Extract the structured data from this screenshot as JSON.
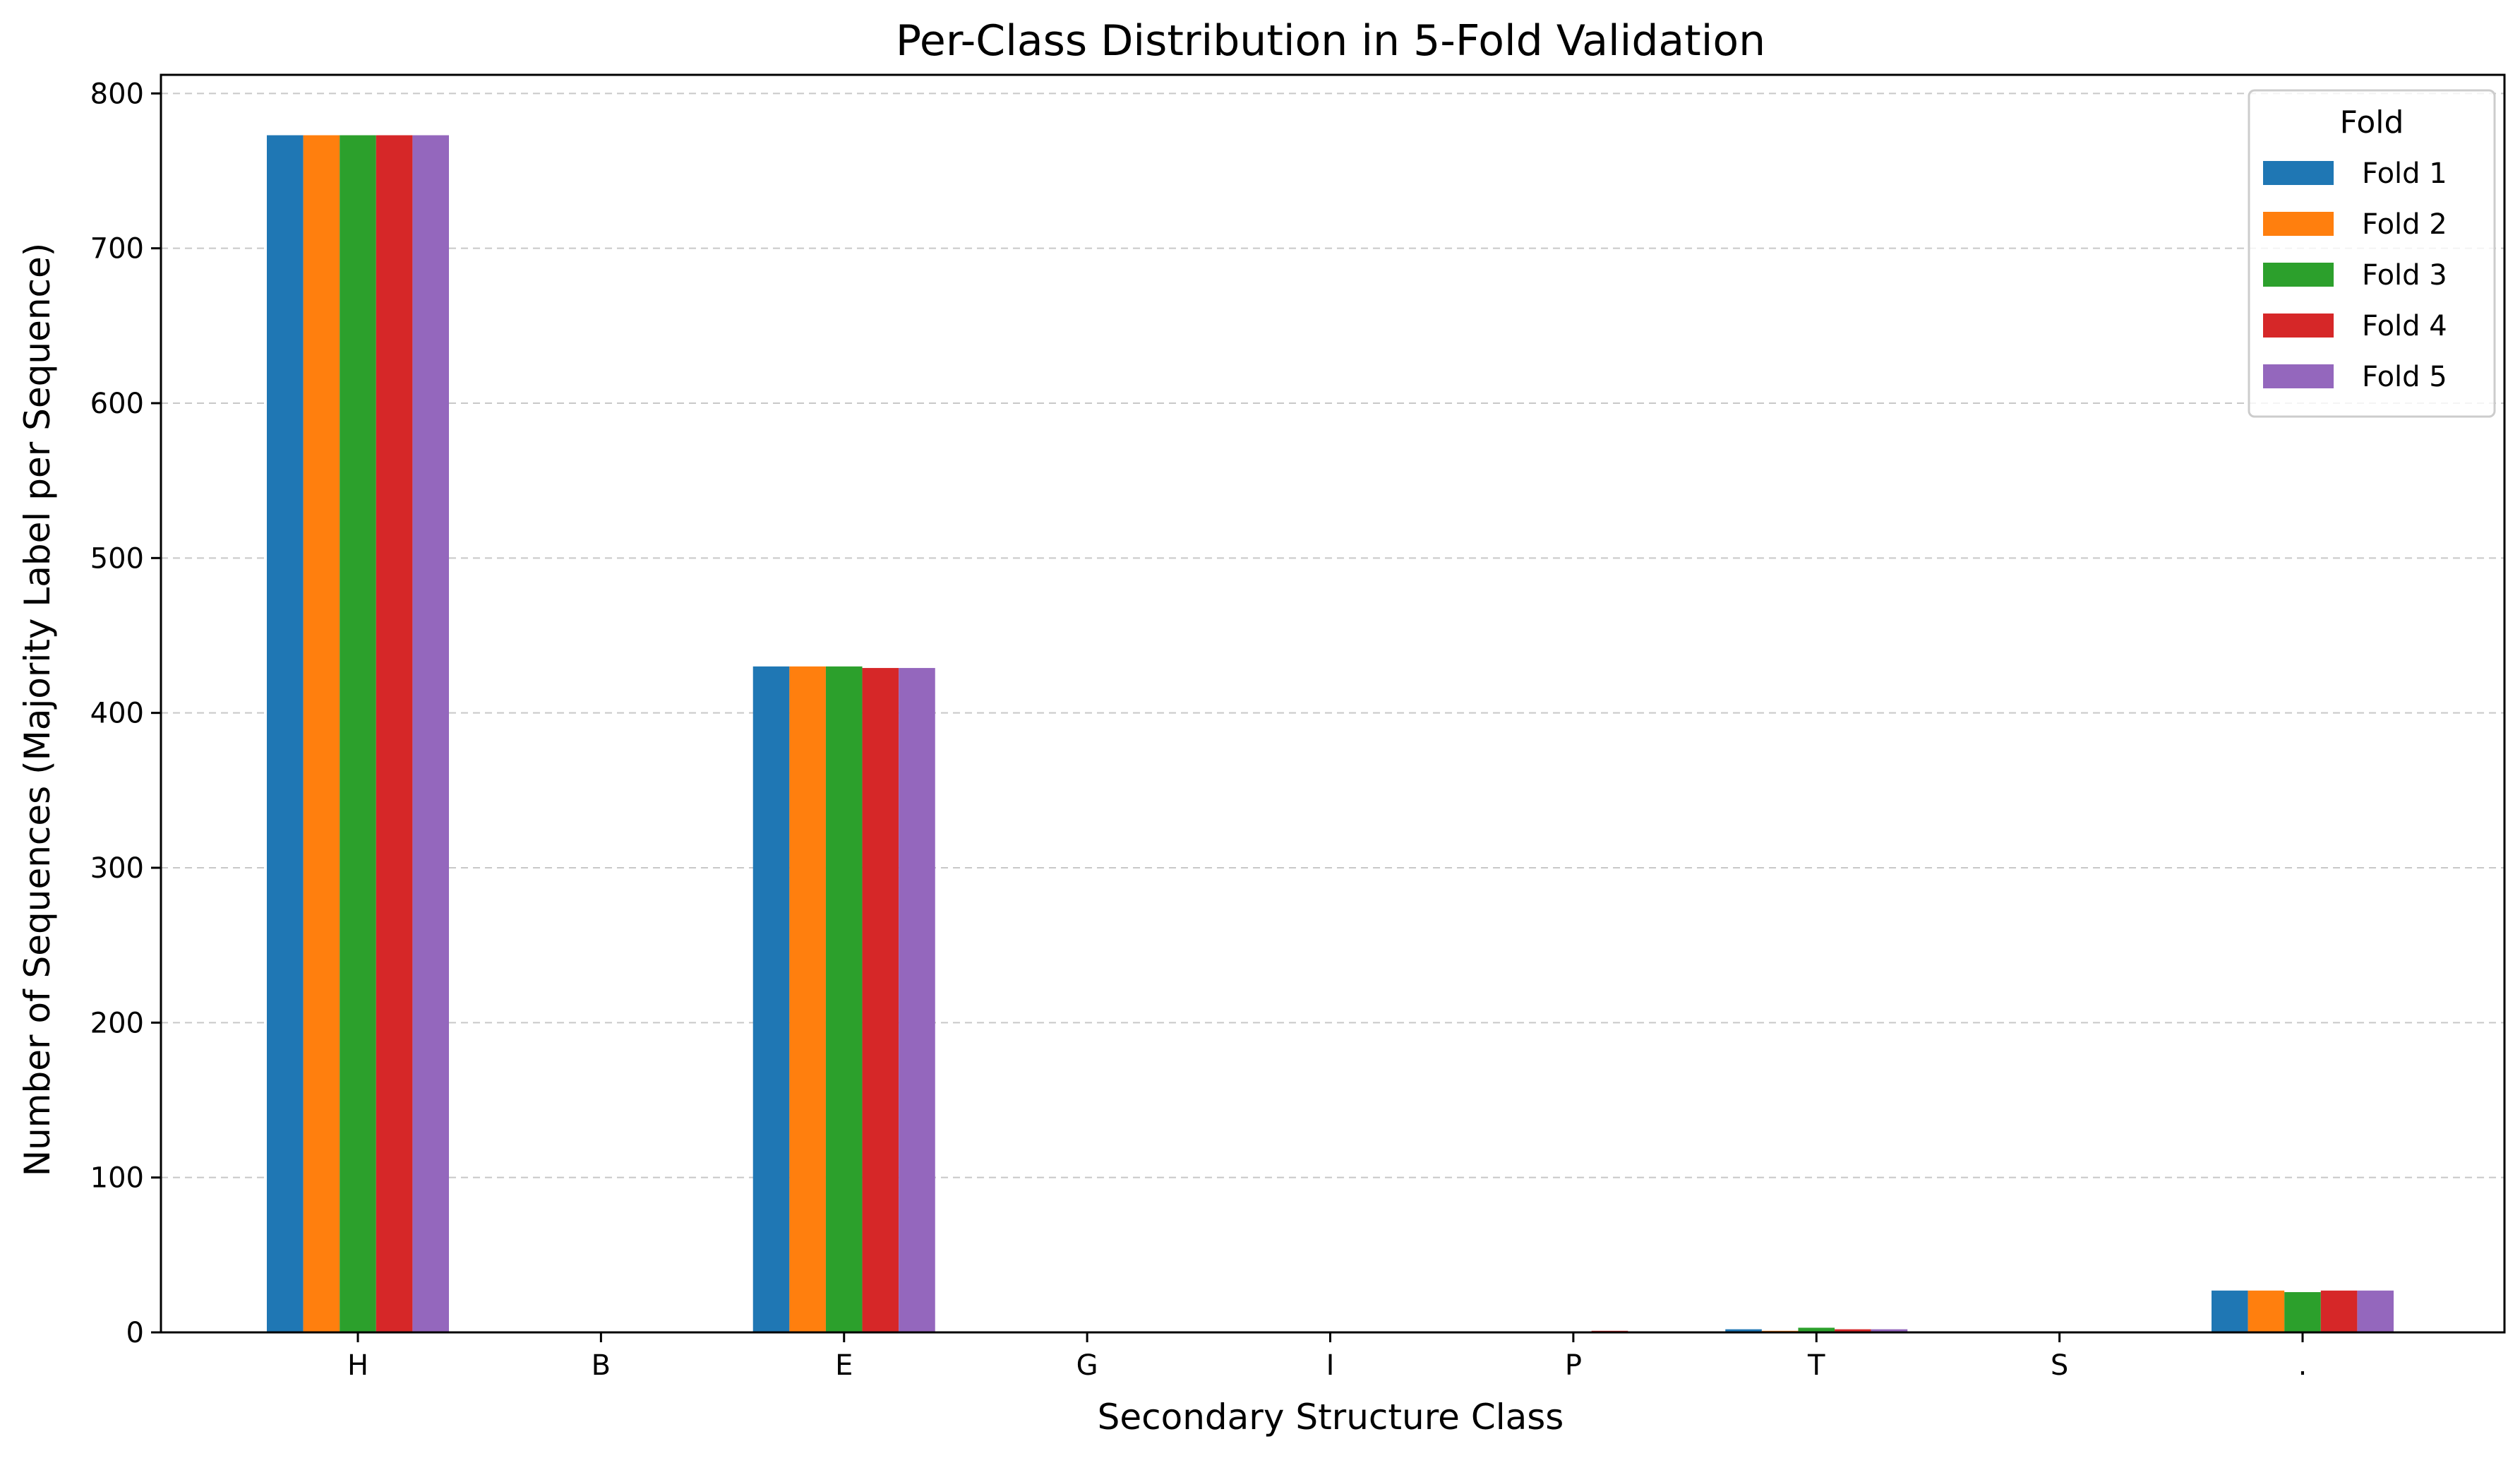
{
  "chart_data": {
    "type": "bar",
    "title": "Per-Class Distribution in 5-Fold Validation",
    "xlabel": "Secondary Structure Class",
    "ylabel": "Number of Sequences (Majority Label per Sequence)",
    "categories": [
      "H",
      "B",
      "E",
      "G",
      "I",
      "P",
      "T",
      "S",
      "."
    ],
    "ylim": [
      0,
      812
    ],
    "yticks": [
      "0",
      "100",
      "200",
      "300",
      "400",
      "500",
      "600",
      "700",
      "800"
    ],
    "grid": "y, dashed",
    "legend": {
      "title": "Fold",
      "position": "top-right"
    },
    "series": [
      {
        "name": "Fold 1",
        "color": "#1f77b4",
        "values": [
          773,
          0,
          430,
          0,
          0,
          0,
          2,
          0,
          27
        ]
      },
      {
        "name": "Fold 2",
        "color": "#ff7f0e",
        "values": [
          773,
          0,
          430,
          0,
          0,
          0,
          1,
          0,
          27
        ]
      },
      {
        "name": "Fold 3",
        "color": "#2ca02c",
        "values": [
          773,
          0,
          430,
          0,
          0,
          0,
          3,
          0,
          26
        ]
      },
      {
        "name": "Fold 4",
        "color": "#d62728",
        "values": [
          773,
          0,
          429,
          0,
          0,
          1,
          2,
          0,
          27
        ]
      },
      {
        "name": "Fold 5",
        "color": "#9467bd",
        "values": [
          773,
          0,
          429,
          0,
          0,
          0,
          2,
          0,
          27
        ]
      }
    ]
  }
}
